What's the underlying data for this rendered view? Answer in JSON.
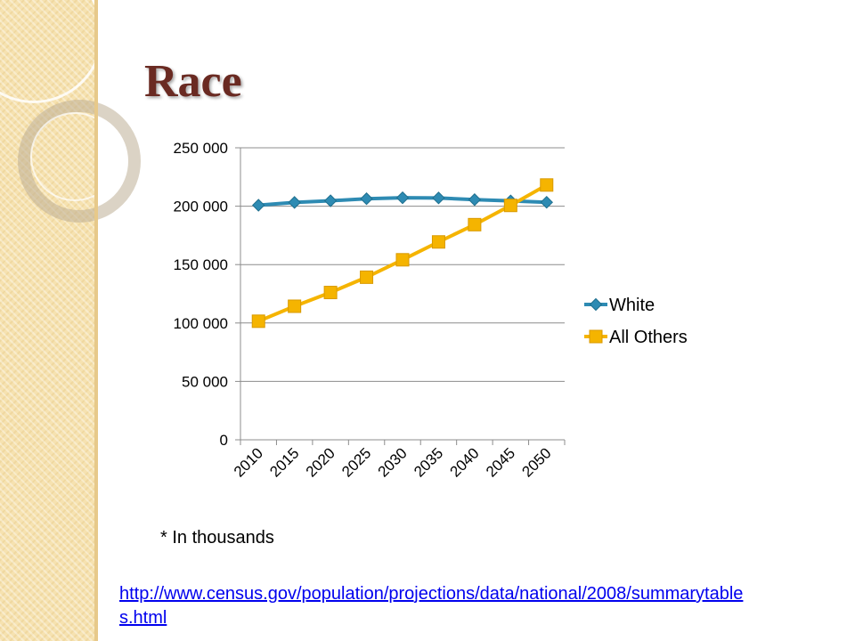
{
  "slide": {
    "title": "Race",
    "note": "* In thousands",
    "source_url": "http://www.census.gov/population/projections/data/national/2008/summarytables.html"
  },
  "chart_data": {
    "type": "line",
    "categories": [
      "2010",
      "2015",
      "2020",
      "2025",
      "2030",
      "2035",
      "2040",
      "2045",
      "2050"
    ],
    "series": [
      {
        "name": "White",
        "values": [
          200853,
          203208,
          204620,
          206380,
          207202,
          207065,
          205609,
          204527,
          203347
        ],
        "color": "#2e8bb3",
        "marker": "diamond"
      },
      {
        "name": "All Others",
        "values": [
          101512,
          114336,
          126113,
          139191,
          154116,
          169403,
          184195,
          200658,
          218137
        ],
        "color": "#f5b400",
        "marker": "square"
      }
    ],
    "ylim": [
      0,
      250000
    ],
    "yticks": [
      0,
      50000,
      100000,
      150000,
      200000,
      250000
    ],
    "ytick_labels": [
      "0",
      "50 000",
      "100 000",
      "150 000",
      "200 000",
      "250 000"
    ],
    "grid": true,
    "legend": "right"
  }
}
